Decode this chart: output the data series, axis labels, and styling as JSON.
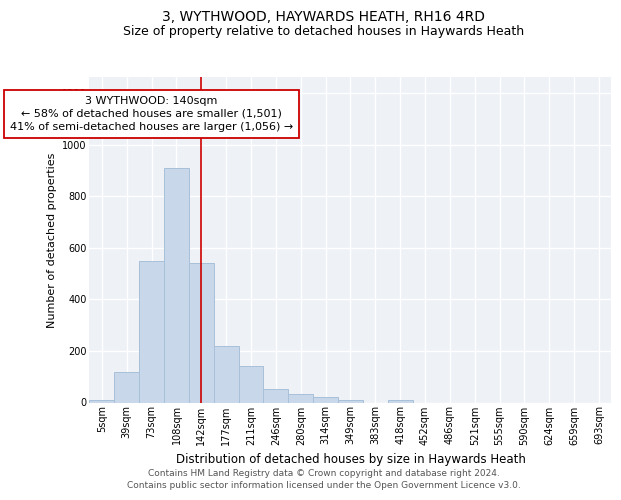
{
  "title": "3, WYTHWOOD, HAYWARDS HEATH, RH16 4RD",
  "subtitle": "Size of property relative to detached houses in Haywards Heath",
  "xlabel": "Distribution of detached houses by size in Haywards Heath",
  "ylabel": "Number of detached properties",
  "bar_color": "#c8d8ea",
  "bar_edgecolor": "#a8c0d8",
  "categories": [
    "5sqm",
    "39sqm",
    "73sqm",
    "108sqm",
    "142sqm",
    "177sqm",
    "211sqm",
    "246sqm",
    "280sqm",
    "314sqm",
    "349sqm",
    "383sqm",
    "418sqm",
    "452sqm",
    "486sqm",
    "521sqm",
    "555sqm",
    "590sqm",
    "624sqm",
    "659sqm",
    "693sqm"
  ],
  "values": [
    8,
    120,
    550,
    910,
    540,
    220,
    140,
    52,
    32,
    20,
    10,
    0,
    8,
    0,
    0,
    0,
    0,
    0,
    0,
    0,
    0
  ],
  "vline_x": 4,
  "vline_color": "#cc0000",
  "annotation_text": "3 WYTHWOOD: 140sqm\n← 58% of detached houses are smaller (1,501)\n41% of semi-detached houses are larger (1,056) →",
  "annotation_box_color": "white",
  "annotation_box_edgecolor": "#cc0000",
  "ylim": [
    0,
    1260
  ],
  "yticks": [
    0,
    200,
    400,
    600,
    800,
    1000,
    1200
  ],
  "bg_color": "#eef2f7",
  "footer": "Contains HM Land Registry data © Crown copyright and database right 2024.\nContains public sector information licensed under the Open Government Licence v3.0.",
  "title_fontsize": 10,
  "subtitle_fontsize": 9,
  "xlabel_fontsize": 8.5,
  "ylabel_fontsize": 8,
  "tick_fontsize": 7,
  "annotation_fontsize": 8,
  "footer_fontsize": 6.5
}
